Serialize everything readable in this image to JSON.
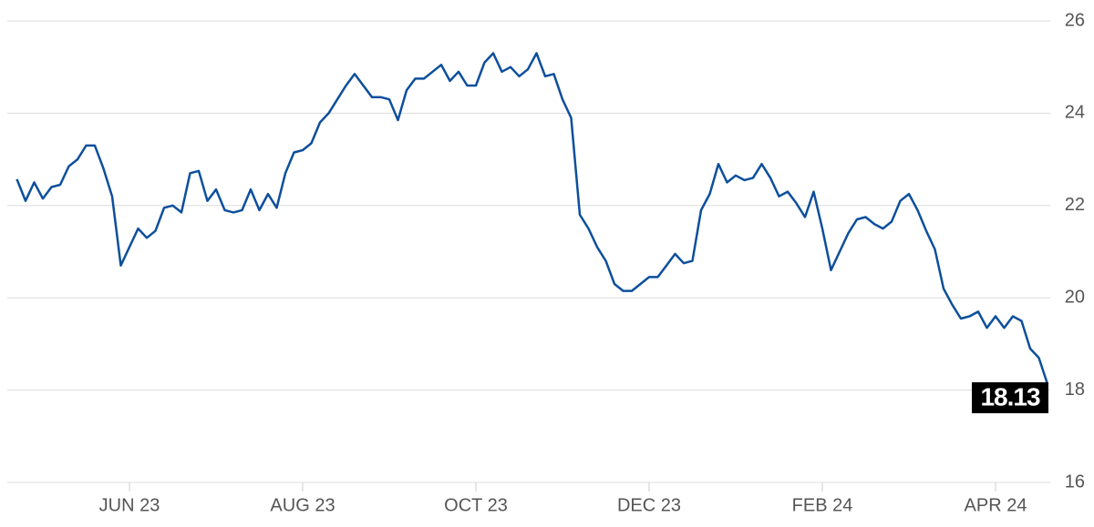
{
  "chart_data": {
    "type": "line",
    "categories": [
      null,
      null,
      null,
      null,
      null,
      null,
      null,
      null,
      null,
      null,
      null,
      null,
      null,
      "JUN 23",
      null,
      null,
      null,
      null,
      null,
      null,
      null,
      null,
      null,
      null,
      null,
      null,
      null,
      null,
      null,
      null,
      null,
      null,
      null,
      "AUG 23",
      null,
      null,
      null,
      null,
      null,
      null,
      null,
      null,
      null,
      null,
      null,
      null,
      null,
      null,
      null,
      null,
      null,
      null,
      null,
      "OCT 23",
      null,
      null,
      null,
      null,
      null,
      null,
      null,
      null,
      null,
      null,
      null,
      null,
      null,
      null,
      null,
      null,
      null,
      null,
      null,
      "DEC 23",
      null,
      null,
      null,
      null,
      null,
      null,
      null,
      null,
      null,
      null,
      null,
      null,
      null,
      null,
      null,
      null,
      null,
      null,
      null,
      "FEB 24",
      null,
      null,
      null,
      null,
      null,
      null,
      null,
      null,
      null,
      null,
      null,
      null,
      null,
      null,
      null,
      null,
      null,
      null,
      null,
      "APR 24",
      null,
      null,
      null,
      null,
      null,
      null
    ],
    "series": [
      {
        "color": "#0d4f9c",
        "values": [
          22.57,
          22.1,
          22.5,
          22.15,
          22.4,
          22.45,
          22.85,
          23.0,
          23.3,
          23.3,
          22.8,
          22.2,
          20.7,
          21.1,
          21.5,
          21.3,
          21.45,
          21.95,
          22.0,
          21.85,
          22.7,
          22.75,
          22.1,
          22.35,
          21.9,
          21.85,
          21.9,
          22.35,
          21.9,
          22.25,
          21.95,
          22.7,
          23.15,
          23.2,
          23.35,
          23.8,
          24.0,
          24.3,
          24.6,
          24.85,
          24.6,
          24.35,
          24.35,
          24.3,
          23.85,
          24.5,
          24.75,
          24.75,
          24.9,
          25.05,
          24.7,
          24.9,
          24.6,
          24.6,
          25.1,
          25.3,
          24.9,
          25.0,
          24.8,
          24.95,
          25.3,
          24.8,
          24.85,
          24.3,
          23.9,
          21.8,
          21.5,
          21.1,
          20.8,
          20.3,
          20.15,
          20.15,
          20.3,
          20.45,
          20.45,
          20.7,
          20.95,
          20.75,
          20.8,
          21.9,
          22.25,
          22.9,
          22.5,
          22.65,
          22.55,
          22.6,
          22.9,
          22.6,
          22.2,
          22.3,
          22.05,
          21.75,
          22.3,
          21.5,
          20.6,
          21.0,
          21.4,
          21.7,
          21.75,
          21.6,
          21.5,
          21.65,
          22.1,
          22.25,
          21.9,
          21.45,
          21.05,
          20.2,
          19.85,
          19.55,
          19.6,
          19.7,
          19.35,
          19.6,
          19.35,
          19.6,
          19.5,
          18.9,
          18.7,
          18.13
        ]
      }
    ],
    "ylim": [
      16,
      26
    ],
    "yticks": [
      16,
      18,
      20,
      22,
      24,
      26
    ],
    "grid": true
  }
}
